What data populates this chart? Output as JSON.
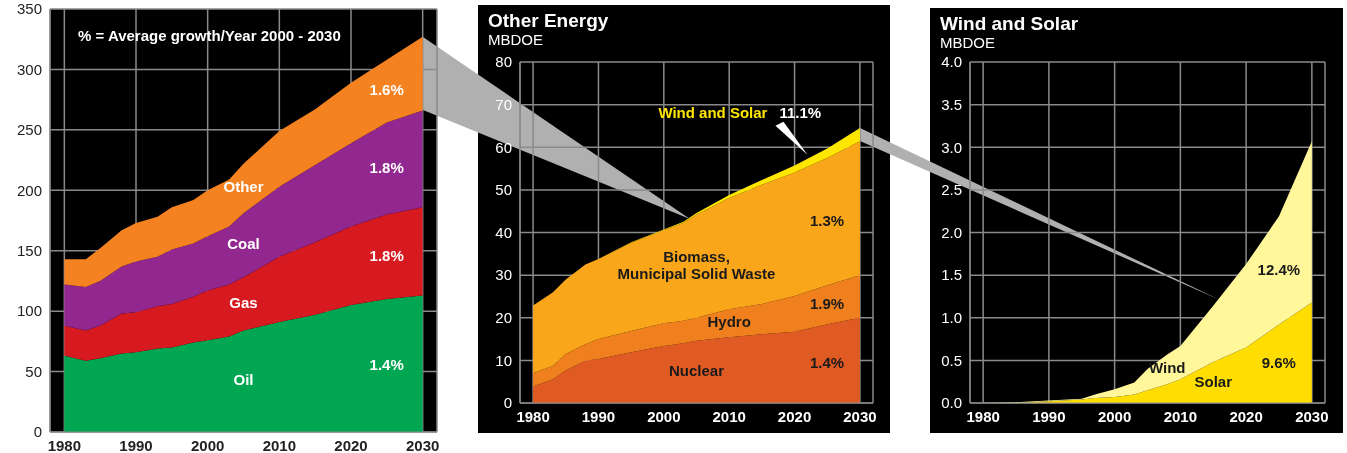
{
  "chart_data": [
    {
      "type": "area",
      "stacked": true,
      "x": [
        1980,
        1983,
        1985,
        1988,
        1990,
        1993,
        1995,
        1998,
        2000,
        2003,
        2005,
        2010,
        2015,
        2020,
        2025,
        2030
      ],
      "series": [
        {
          "name": "Oil",
          "color": "#00a651",
          "values": [
            63,
            59,
            61,
            65,
            66,
            69,
            70,
            74,
            76,
            79,
            84,
            91,
            97,
            105,
            110,
            113
          ]
        },
        {
          "name": "Gas",
          "color": "#d71920",
          "values": [
            25,
            25,
            27,
            33,
            33,
            35,
            36,
            38,
            41,
            43,
            44,
            54,
            60,
            65,
            70,
            73
          ]
        },
        {
          "name": "Coal",
          "color": "#92278f",
          "values": [
            34,
            36,
            37,
            39,
            42,
            41,
            45,
            44,
            45,
            48,
            53,
            58,
            64,
            69,
            76,
            80
          ]
        },
        {
          "name": "Other",
          "color": "#f58220",
          "values": [
            21,
            23,
            27,
            30,
            32,
            33,
            35,
            36,
            38,
            39,
            41,
            46,
            46,
            50,
            52,
            61
          ]
        }
      ],
      "xlim": [
        1978,
        2032
      ],
      "xticks": [
        1980,
        1990,
        2000,
        2010,
        2020,
        2030
      ],
      "ylim": [
        0,
        350
      ],
      "yticks": [
        0,
        50,
        100,
        150,
        200,
        250,
        300,
        350
      ],
      "grid": true,
      "annotations": [
        "% =  Average growth/Year 2000 - 2030",
        "1.4%",
        "1.8%",
        "1.8%",
        "1.6%"
      ]
    },
    {
      "type": "area",
      "stacked": true,
      "title": "Other Energy",
      "ylabel": "MBDOE",
      "x": [
        1980,
        1983,
        1985,
        1988,
        1990,
        1995,
        2000,
        2003,
        2005,
        2010,
        2015,
        2020,
        2025,
        2030
      ],
      "series": [
        {
          "name": "Nuclear",
          "color": "#e05a24",
          "values": [
            3.9,
            5.5,
            7.6,
            9.9,
            10.3,
            11.9,
            13.4,
            14,
            14.6,
            15.4,
            16.1,
            16.7,
            18.5,
            20
          ]
        },
        {
          "name": "Hydro",
          "color": "#f07f1e",
          "values": [
            3.1,
            3.2,
            3.9,
            3.9,
            4.7,
            5,
            5.3,
            5.3,
            5.4,
            6.6,
            7.1,
            8.4,
            9.1,
            10
          ]
        },
        {
          "name": "Biomass,\nMunicipal Solid Waste",
          "color": "#f9a61a",
          "values": [
            15.9,
            17.2,
            17.5,
            18.7,
            18.8,
            20.7,
            21.8,
            23,
            24.2,
            26.1,
            28,
            29,
            29.9,
            31.4
          ]
        },
        {
          "name": "Wind and Solar",
          "color": "#ffe600",
          "values": [
            0,
            0,
            0,
            0,
            0,
            0.1,
            0.2,
            0.2,
            0.4,
            0.7,
            1.1,
            1.6,
            2.2,
            3.1
          ]
        }
      ],
      "xlim": [
        1978,
        2032
      ],
      "xticks": [
        1980,
        1990,
        2000,
        2010,
        2020,
        2030
      ],
      "ylim": [
        0,
        80
      ],
      "yticks": [
        0,
        10,
        20,
        30,
        40,
        50,
        60,
        70,
        80
      ],
      "grid": true,
      "annotations": [
        "1.4%",
        "1.9%",
        "1.3%",
        "11.1%"
      ]
    },
    {
      "type": "area",
      "stacked": true,
      "title": "Wind and Solar",
      "ylabel": "MBDOE",
      "x": [
        1980,
        1985,
        1990,
        1995,
        1997,
        2000,
        2003,
        2005,
        2008,
        2010,
        2015,
        2020,
        2025,
        2030
      ],
      "series": [
        {
          "name": "Solar",
          "color": "#ffdd00",
          "values": [
            0,
            0,
            0.02,
            0.04,
            0.06,
            0.07,
            0.1,
            0.15,
            0.22,
            0.28,
            0.48,
            0.65,
            0.92,
            1.18
          ]
        },
        {
          "name": "Wind",
          "color": "#fff799",
          "values": [
            0,
            0.01,
            0.01,
            0.01,
            0.04,
            0.09,
            0.14,
            0.25,
            0.35,
            0.39,
            0.66,
            0.98,
            1.27,
            1.89
          ]
        }
      ],
      "xlim": [
        1978,
        2032
      ],
      "xticks": [
        1980,
        1990,
        2000,
        2010,
        2020,
        2030
      ],
      "ylim": [
        0,
        4
      ],
      "yticks": [
        {
          "value": 0,
          "label": "0.0"
        },
        {
          "value": 0.5,
          "label": "0.5"
        },
        {
          "value": 1,
          "label": "1.0"
        },
        {
          "value": 1.5,
          "label": "1.5"
        },
        {
          "value": 2,
          "label": "2.0"
        },
        {
          "value": 2.5,
          "label": "2.5"
        },
        {
          "value": 3,
          "label": "3.0"
        },
        {
          "value": 3.5,
          "label": "3.5"
        },
        {
          "value": 4,
          "label": "4.0"
        }
      ],
      "grid": true,
      "annotations": [
        "9.6%",
        "12.4%"
      ]
    }
  ]
}
